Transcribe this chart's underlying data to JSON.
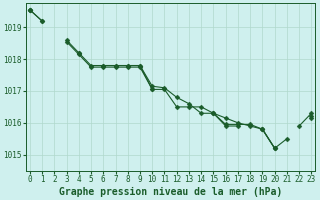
{
  "title": "Graphe pression niveau de la mer (hPa)",
  "background_color": "#cff0ee",
  "grid_color": "#b0d8cc",
  "line_color": "#1a5c2a",
  "x_ticks": [
    0,
    1,
    2,
    3,
    4,
    5,
    6,
    7,
    8,
    9,
    10,
    11,
    12,
    13,
    14,
    15,
    16,
    17,
    18,
    19,
    20,
    21,
    22,
    23
  ],
  "y_ticks": [
    1015,
    1016,
    1017,
    1018,
    1019
  ],
  "ylim": [
    1014.5,
    1019.75
  ],
  "xlim": [
    -0.3,
    23.3
  ],
  "series": [
    [
      1019.55,
      1019.2,
      null,
      null,
      null,
      null,
      null,
      null,
      null,
      null,
      null,
      null,
      null,
      null,
      null,
      null,
      null,
      null,
      null,
      null,
      null,
      null,
      null,
      null
    ],
    [
      1019.55,
      1019.2,
      null,
      1018.6,
      1018.2,
      null,
      1017.8,
      1017.8,
      1017.8,
      1017.8,
      1017.05,
      null,
      null,
      null,
      null,
      1016.3,
      1015.9,
      1015.9,
      null,
      1015.8,
      1015.2,
      1015.5,
      null,
      1016.2
    ],
    [
      1019.55,
      null,
      null,
      1018.55,
      1018.15,
      1017.75,
      1017.75,
      1017.75,
      1017.75,
      1017.75,
      1017.05,
      1017.05,
      1016.5,
      1016.5,
      1016.5,
      1016.3,
      1015.95,
      1015.95,
      1015.95,
      1015.8,
      1015.2,
      null,
      null,
      1016.15
    ],
    [
      1019.55,
      null,
      null,
      null,
      1018.2,
      1017.8,
      1017.8,
      1017.8,
      1017.8,
      1017.8,
      1017.15,
      1017.1,
      1016.8,
      1016.6,
      1016.3,
      1016.3,
      1016.15,
      1016.0,
      1015.9,
      1015.8,
      1015.2,
      null,
      1015.9,
      1016.3
    ]
  ],
  "marker": "D",
  "markersize": 2.5,
  "linewidth": 0.8,
  "title_fontsize": 7,
  "tick_fontsize": 5.5,
  "title_color": "#1a5c2a",
  "tick_color": "#1a5c2a"
}
